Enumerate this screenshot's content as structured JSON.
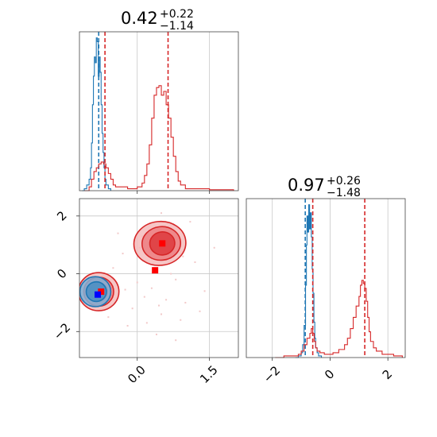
{
  "chart_data": {
    "type": "corner",
    "colors": {
      "series_a": "#1f77b4",
      "series_b": "#d62728",
      "marker_a": "#0000ff",
      "marker_b": "#ff0000"
    },
    "grid": true,
    "panels": {
      "top_left": {
        "type": "histogram",
        "title_main": "0.42",
        "title_sup": "+0.22",
        "title_sub": "−1.14",
        "xlim": [
          -1.2,
          2.1
        ],
        "xticks": [
          0.0,
          1.5
        ],
        "series": [
          {
            "color": "#1f77b4",
            "points": [
              [
                -1.15,
                0
              ],
              [
                -1.1,
                0.01
              ],
              [
                -1.05,
                0.03
              ],
              [
                -1.0,
                0.06
              ],
              [
                -0.97,
                0.12
              ],
              [
                -0.95,
                0.25
              ],
              [
                -0.93,
                0.45
              ],
              [
                -0.91,
                0.6
              ],
              [
                -0.89,
                0.7
              ],
              [
                -0.87,
                0.67
              ],
              [
                -0.85,
                0.8
              ],
              [
                -0.83,
                0.78
              ],
              [
                -0.81,
                0.6
              ],
              [
                -0.79,
                0.7
              ],
              [
                -0.77,
                0.62
              ],
              [
                -0.75,
                0.45
              ],
              [
                -0.73,
                0.3
              ],
              [
                -0.71,
                0.2
              ],
              [
                -0.69,
                0.12
              ],
              [
                -0.67,
                0.06
              ],
              [
                -0.65,
                0.03
              ],
              [
                -0.6,
                0.01
              ],
              [
                -0.55,
                0
              ]
            ],
            "dashed_lines": [
              -0.8
            ]
          },
          {
            "color": "#d62728",
            "points": [
              [
                -1.1,
                0
              ],
              [
                -1.0,
                0.02
              ],
              [
                -0.95,
                0.06
              ],
              [
                -0.9,
                0.1
              ],
              [
                -0.85,
                0.12
              ],
              [
                -0.8,
                0.14
              ],
              [
                -0.75,
                0.15
              ],
              [
                -0.7,
                0.14
              ],
              [
                -0.65,
                0.12
              ],
              [
                -0.6,
                0.09
              ],
              [
                -0.55,
                0.06
              ],
              [
                -0.5,
                0.03
              ],
              [
                -0.45,
                0.02
              ],
              [
                -0.2,
                0.01
              ],
              [
                0.0,
                0.02
              ],
              [
                0.1,
                0.04
              ],
              [
                0.15,
                0.08
              ],
              [
                0.2,
                0.14
              ],
              [
                0.25,
                0.24
              ],
              [
                0.3,
                0.38
              ],
              [
                0.35,
                0.5
              ],
              [
                0.4,
                0.54
              ],
              [
                0.45,
                0.55
              ],
              [
                0.5,
                0.5
              ],
              [
                0.55,
                0.52
              ],
              [
                0.6,
                0.45
              ],
              [
                0.65,
                0.38
              ],
              [
                0.7,
                0.28
              ],
              [
                0.75,
                0.18
              ],
              [
                0.8,
                0.1
              ],
              [
                0.85,
                0.05
              ],
              [
                0.9,
                0.03
              ],
              [
                1.0,
                0.01
              ],
              [
                1.2,
                0.01
              ],
              [
                1.5,
                0.005
              ],
              [
                2.0,
                0
              ]
            ],
            "dashed_lines": [
              -0.67,
              0.64
            ]
          }
        ]
      },
      "bottom_left": {
        "type": "2d-contour",
        "xlim": [
          -1.2,
          2.1
        ],
        "ylim": [
          -2.9,
          2.6
        ],
        "xticks": [
          0.0,
          1.5
        ],
        "yticks": [
          -2,
          0,
          2
        ],
        "markers": [
          {
            "color": "#ff0000",
            "x": 0.52,
            "y": 1.05
          },
          {
            "color": "#ff0000",
            "x": 0.37,
            "y": 0.12
          },
          {
            "color": "#ff0000",
            "x": -0.75,
            "y": -0.62
          },
          {
            "color": "#0000ff",
            "x": -0.82,
            "y": -0.72
          }
        ],
        "contours": [
          {
            "color": "#d62728",
            "fill": "#f4bcbc",
            "center": [
              0.47,
              1.05
            ],
            "rx": 0.54,
            "ry": 0.76,
            "rot": -6
          },
          {
            "color": "#d62728",
            "fill": "#ec7e80",
            "center": [
              0.5,
              1.05
            ],
            "rx": 0.4,
            "ry": 0.58,
            "rot": -6
          },
          {
            "color": "#d62728",
            "fill": "#dd3a3c",
            "center": [
              0.52,
              1.05
            ],
            "rx": 0.26,
            "ry": 0.4,
            "rot": -6
          },
          {
            "color": "#d62728",
            "fill": "#f4bcbc",
            "center": [
              -0.8,
              -0.62
            ],
            "rx": 0.42,
            "ry": 0.66,
            "rot": 0
          },
          {
            "color": "#d62728",
            "fill": "#ec7e80",
            "center": [
              -0.8,
              -0.62
            ],
            "rx": 0.31,
            "ry": 0.5,
            "rot": 0
          },
          {
            "color": "#d62728",
            "fill": "#dd3a3c",
            "center": [
              -0.8,
              -0.62
            ],
            "rx": 0.18,
            "ry": 0.31,
            "rot": 0
          },
          {
            "color": "#1f77b4",
            "fill": "#7fb0d6",
            "center": [
              -0.87,
              -0.62
            ],
            "rx": 0.32,
            "ry": 0.52,
            "rot": 0
          },
          {
            "color": "#1f77b4",
            "fill": "#4a8fc4",
            "center": [
              -0.85,
              -0.62
            ],
            "rx": 0.21,
            "ry": 0.34,
            "rot": 0
          }
        ],
        "scatter": [
          [
            0.1,
            1.3
          ],
          [
            0.3,
            -0.5
          ],
          [
            0.8,
            -0.2
          ],
          [
            -0.3,
            0.7
          ],
          [
            1.0,
            -1.0
          ],
          [
            0.5,
            -1.4
          ],
          [
            -0.1,
            -1.2
          ],
          [
            1.2,
            0.4
          ],
          [
            0.6,
            -0.9
          ],
          [
            0.2,
            -1.7
          ],
          [
            -0.5,
            0.2
          ],
          [
            1.4,
            -0.6
          ],
          [
            0.9,
            -1.6
          ],
          [
            0.0,
            -0.3
          ],
          [
            0.4,
            -2.1
          ],
          [
            -0.2,
            -1.8
          ],
          [
            1.1,
            1.8
          ],
          [
            0.7,
            0.0
          ],
          [
            -0.4,
            1.4
          ],
          [
            0.3,
            0.5
          ],
          [
            1.6,
            0.9
          ],
          [
            0.5,
            2.1
          ],
          [
            0.8,
            -2.3
          ],
          [
            -0.6,
            -1.5
          ],
          [
            0.15,
            -0.8
          ],
          [
            1.3,
            -1.3
          ],
          [
            0.05,
            0.9
          ],
          [
            0.95,
            0.6
          ],
          [
            0.45,
            -1.1
          ],
          [
            -0.25,
            -0.55
          ]
        ]
      },
      "bottom_right": {
        "type": "histogram",
        "title_main": "0.97",
        "title_sup": "+0.26",
        "title_sub": "−1.48",
        "xlim": [
          -2.9,
          2.6
        ],
        "xticks": [
          -2,
          0,
          2
        ],
        "series": [
          {
            "color": "#1f77b4",
            "points": [
              [
                -1.2,
                0
              ],
              [
                -1.1,
                0.01
              ],
              [
                -1.0,
                0.03
              ],
              [
                -0.95,
                0.08
              ],
              [
                -0.9,
                0.2
              ],
              [
                -0.85,
                0.45
              ],
              [
                -0.82,
                0.7
              ],
              [
                -0.8,
                0.88
              ],
              [
                -0.77,
                0.78
              ],
              [
                -0.74,
                0.95
              ],
              [
                -0.71,
                0.8
              ],
              [
                -0.68,
                0.9
              ],
              [
                -0.65,
                0.75
              ],
              [
                -0.62,
                0.55
              ],
              [
                -0.59,
                0.4
              ],
              [
                -0.56,
                0.22
              ],
              [
                -0.53,
                0.12
              ],
              [
                -0.5,
                0.06
              ],
              [
                -0.45,
                0.03
              ],
              [
                -0.4,
                0.01
              ],
              [
                -0.3,
                0
              ]
            ],
            "dashed_lines": [
              -0.86
            ]
          },
          {
            "color": "#d62728",
            "points": [
              [
                -1.9,
                0
              ],
              [
                -1.6,
                0.01
              ],
              [
                -1.3,
                0.01
              ],
              [
                -1.1,
                0.02
              ],
              [
                -1.0,
                0.04
              ],
              [
                -0.9,
                0.08
              ],
              [
                -0.8,
                0.12
              ],
              [
                -0.7,
                0.15
              ],
              [
                -0.65,
                0.18
              ],
              [
                -0.6,
                0.15
              ],
              [
                -0.55,
                0.1
              ],
              [
                -0.5,
                0.06
              ],
              [
                -0.45,
                0.04
              ],
              [
                -0.35,
                0.03
              ],
              [
                -0.2,
                0.02
              ],
              [
                0.0,
                0.02
              ],
              [
                0.1,
                0.03
              ],
              [
                0.3,
                0.05
              ],
              [
                0.5,
                0.08
              ],
              [
                0.6,
                0.12
              ],
              [
                0.7,
                0.18
              ],
              [
                0.8,
                0.25
              ],
              [
                0.9,
                0.32
              ],
              [
                1.0,
                0.38
              ],
              [
                1.05,
                0.45
              ],
              [
                1.1,
                0.48
              ],
              [
                1.15,
                0.46
              ],
              [
                1.2,
                0.43
              ],
              [
                1.25,
                0.35
              ],
              [
                1.3,
                0.25
              ],
              [
                1.35,
                0.16
              ],
              [
                1.4,
                0.1
              ],
              [
                1.5,
                0.06
              ],
              [
                1.6,
                0.04
              ],
              [
                1.8,
                0.02
              ],
              [
                2.0,
                0.02
              ],
              [
                2.2,
                0.01
              ],
              [
                2.5,
                0
              ]
            ],
            "dashed_lines": [
              -0.6,
              1.2
            ]
          }
        ]
      }
    }
  }
}
